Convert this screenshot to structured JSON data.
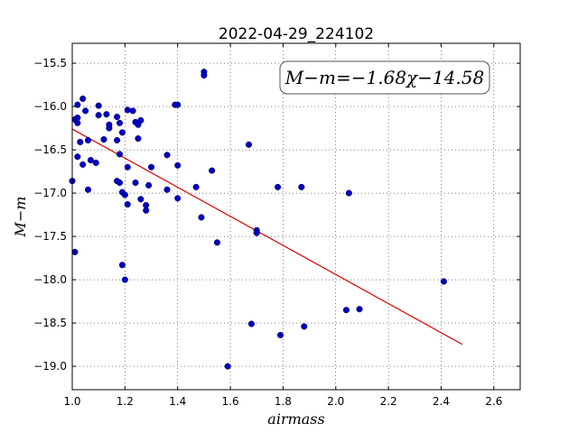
{
  "chart_data": {
    "type": "scatter",
    "title": "2022-04-29_224102",
    "xlabel": "airmass",
    "ylabel": "M−m",
    "xlim": [
      1.0,
      2.7
    ],
    "ylim": [
      -19.27,
      -15.27
    ],
    "y_inverted": true,
    "x_ticks": [
      "1.0",
      "1.2",
      "1.4",
      "1.6",
      "1.8",
      "2.0",
      "2.2",
      "2.4",
      "2.6"
    ],
    "x_tick_values": [
      1.0,
      1.2,
      1.4,
      1.6,
      1.8,
      2.0,
      2.2,
      2.4,
      2.6
    ],
    "y_ticks": [
      "−15.5",
      "−16.0",
      "−16.5",
      "−17.0",
      "−17.5",
      "−18.0",
      "−18.5",
      "−19.0"
    ],
    "y_tick_values": [
      -15.5,
      -16.0,
      -16.5,
      -17.0,
      -17.5,
      -18.0,
      -18.5,
      -19.0
    ],
    "grid": true,
    "annotation": "M−m=−1.68χ−14.58",
    "fit": {
      "slope": -1.68,
      "intercept": -14.58,
      "x_range": [
        1.0,
        2.48
      ],
      "color": "#dd0000"
    },
    "point_color": "#0000c0",
    "points": [
      [
        1.0,
        -16.86
      ],
      [
        1.01,
        -17.68
      ],
      [
        1.01,
        -16.15
      ],
      [
        1.02,
        -16.19
      ],
      [
        1.02,
        -15.98
      ],
      [
        1.02,
        -16.13
      ],
      [
        1.02,
        -16.58
      ],
      [
        1.03,
        -16.41
      ],
      [
        1.04,
        -15.91
      ],
      [
        1.04,
        -16.67
      ],
      [
        1.05,
        -16.05
      ],
      [
        1.06,
        -16.96
      ],
      [
        1.06,
        -16.39
      ],
      [
        1.07,
        -16.62
      ],
      [
        1.09,
        -16.65
      ],
      [
        1.1,
        -16.1
      ],
      [
        1.1,
        -15.99
      ],
      [
        1.12,
        -16.38
      ],
      [
        1.13,
        -16.09
      ],
      [
        1.14,
        -16.21
      ],
      [
        1.14,
        -16.25
      ],
      [
        1.17,
        -16.12
      ],
      [
        1.17,
        -16.39
      ],
      [
        1.17,
        -16.86
      ],
      [
        1.18,
        -16.19
      ],
      [
        1.18,
        -16.55
      ],
      [
        1.18,
        -16.88
      ],
      [
        1.19,
        -16.3
      ],
      [
        1.19,
        -17.83
      ],
      [
        1.19,
        -16.99
      ],
      [
        1.2,
        -17.02
      ],
      [
        1.2,
        -18.0
      ],
      [
        1.21,
        -16.04
      ],
      [
        1.21,
        -16.7
      ],
      [
        1.21,
        -17.13
      ],
      [
        1.23,
        -16.05
      ],
      [
        1.24,
        -16.18
      ],
      [
        1.24,
        -16.88
      ],
      [
        1.25,
        -16.37
      ],
      [
        1.25,
        -16.21
      ],
      [
        1.26,
        -16.16
      ],
      [
        1.26,
        -17.07
      ],
      [
        1.28,
        -17.14
      ],
      [
        1.28,
        -17.2
      ],
      [
        1.29,
        -16.91
      ],
      [
        1.3,
        -16.7
      ],
      [
        1.36,
        -16.56
      ],
      [
        1.36,
        -16.96
      ],
      [
        1.39,
        -15.98
      ],
      [
        1.4,
        -15.98
      ],
      [
        1.4,
        -17.06
      ],
      [
        1.4,
        -16.68
      ],
      [
        1.47,
        -16.93
      ],
      [
        1.49,
        -17.28
      ],
      [
        1.5,
        -15.6
      ],
      [
        1.5,
        -15.64
      ],
      [
        1.53,
        -16.74
      ],
      [
        1.55,
        -17.57
      ],
      [
        1.59,
        -19.0
      ],
      [
        1.67,
        -16.44
      ],
      [
        1.68,
        -18.51
      ],
      [
        1.7,
        -17.43
      ],
      [
        1.7,
        -17.46
      ],
      [
        1.78,
        -16.93
      ],
      [
        1.79,
        -18.64
      ],
      [
        1.87,
        -16.93
      ],
      [
        1.88,
        -18.54
      ],
      [
        2.04,
        -18.35
      ],
      [
        2.05,
        -17.0
      ],
      [
        2.09,
        -18.34
      ],
      [
        2.41,
        -18.02
      ]
    ]
  }
}
